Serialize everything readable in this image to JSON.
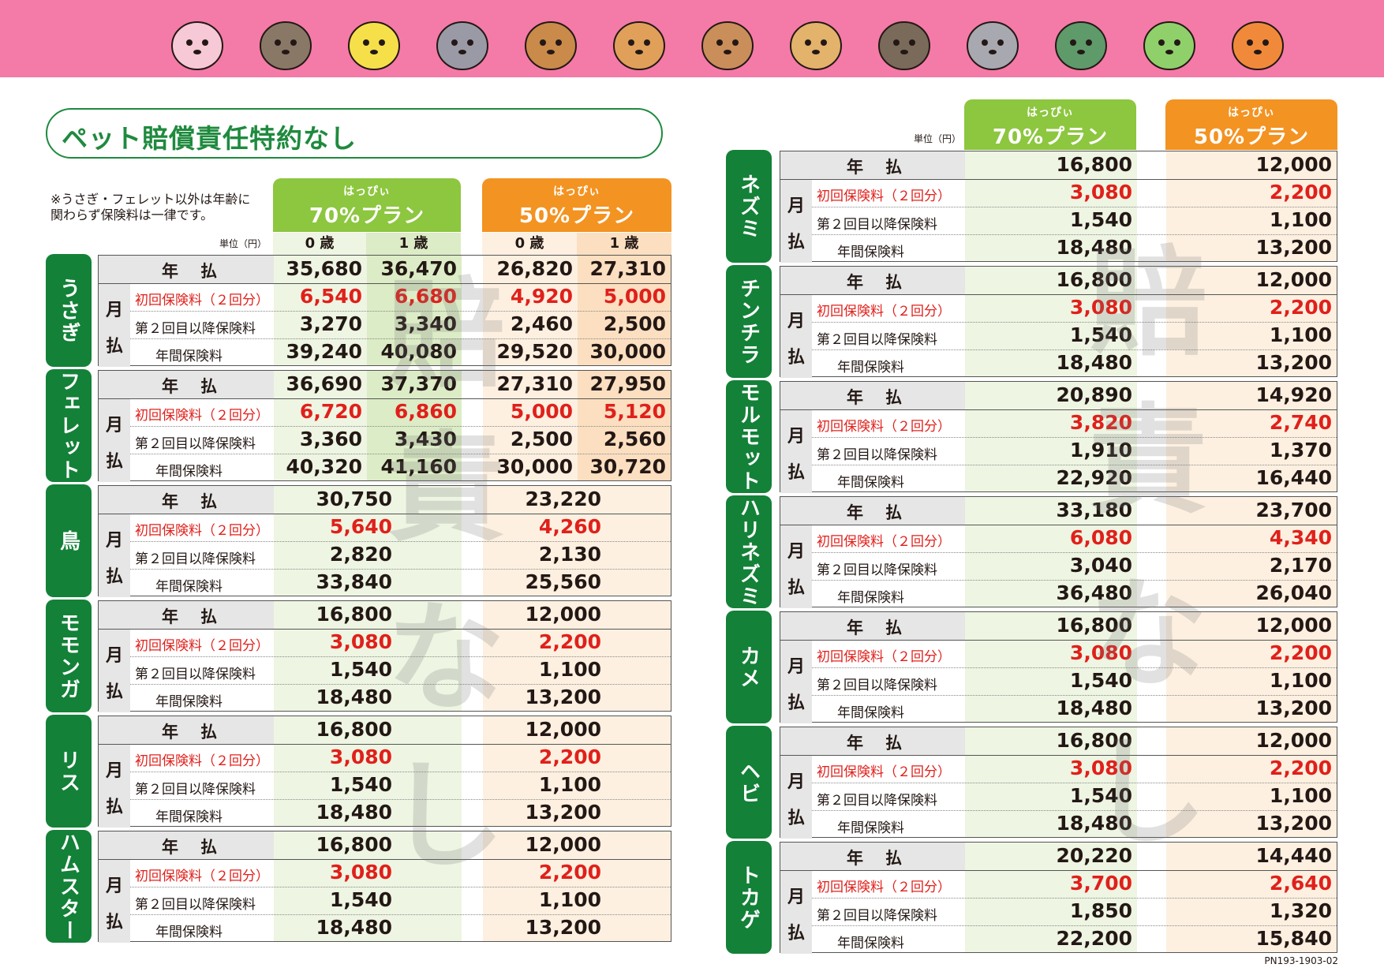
{
  "title": "ペット賠償責任特約なし",
  "note": "※うさぎ・フェレット以外は年齢に\n関わらず保険料は一律です。",
  "unit_label": "単位（円）",
  "watermark": [
    "賠",
    "責",
    "な",
    "し"
  ],
  "plans": {
    "ruby": "はっぴぃ",
    "p70": "70%プラン",
    "p50": "50%プラン"
  },
  "age_labels": [
    "0 歳",
    "1 歳"
  ],
  "row_labels": {
    "year": "年払",
    "month": [
      "月",
      "払"
    ],
    "first": "初回保険料（２回分）",
    "second": "第２回目以降保険料",
    "annual": "年間保険料"
  },
  "doc_code": "PN193-1903-02",
  "animals": [
    "rabbit-icon",
    "ferret-icon",
    "bird-icon",
    "sugar-glider-icon",
    "squirrel-icon",
    "hamster-icon",
    "guinea-pig-icon",
    "mouse-icon",
    "hedgehog-icon",
    "chinchilla-icon",
    "turtle-icon",
    "chameleon-icon",
    "snake-icon"
  ],
  "left": [
    {
      "name": "うさぎ",
      "aged": true,
      "year": [
        "35,680",
        "36,470",
        "26,820",
        "27,310"
      ],
      "first": [
        "6,540",
        "6,680",
        "4,920",
        "5,000"
      ],
      "second": [
        "3,270",
        "3,340",
        "2,460",
        "2,500"
      ],
      "annual": [
        "39,240",
        "40,080",
        "29,520",
        "30,000"
      ]
    },
    {
      "name": "フェレット",
      "aged": true,
      "year": [
        "36,690",
        "37,370",
        "27,310",
        "27,950"
      ],
      "first": [
        "6,720",
        "6,860",
        "5,000",
        "5,120"
      ],
      "second": [
        "3,360",
        "3,430",
        "2,500",
        "2,560"
      ],
      "annual": [
        "40,320",
        "41,160",
        "30,000",
        "30,720"
      ]
    },
    {
      "name": "鳥",
      "aged": false,
      "year": [
        "30,750",
        "23,220"
      ],
      "first": [
        "5,640",
        "4,260"
      ],
      "second": [
        "2,820",
        "2,130"
      ],
      "annual": [
        "33,840",
        "25,560"
      ]
    },
    {
      "name": "モモンガ",
      "aged": false,
      "year": [
        "16,800",
        "12,000"
      ],
      "first": [
        "3,080",
        "2,200"
      ],
      "second": [
        "1,540",
        "1,100"
      ],
      "annual": [
        "18,480",
        "13,200"
      ]
    },
    {
      "name": "リス",
      "aged": false,
      "year": [
        "16,800",
        "12,000"
      ],
      "first": [
        "3,080",
        "2,200"
      ],
      "second": [
        "1,540",
        "1,100"
      ],
      "annual": [
        "18,480",
        "13,200"
      ]
    },
    {
      "name": "ハムスター",
      "aged": false,
      "year": [
        "16,800",
        "12,000"
      ],
      "first": [
        "3,080",
        "2,200"
      ],
      "second": [
        "1,540",
        "1,100"
      ],
      "annual": [
        "18,480",
        "13,200"
      ]
    }
  ],
  "right": [
    {
      "name": "ネズミ",
      "year": [
        "16,800",
        "12,000"
      ],
      "first": [
        "3,080",
        "2,200"
      ],
      "second": [
        "1,540",
        "1,100"
      ],
      "annual": [
        "18,480",
        "13,200"
      ]
    },
    {
      "name": "チンチラ",
      "year": [
        "16,800",
        "12,000"
      ],
      "first": [
        "3,080",
        "2,200"
      ],
      "second": [
        "1,540",
        "1,100"
      ],
      "annual": [
        "18,480",
        "13,200"
      ]
    },
    {
      "name": "モルモット",
      "year": [
        "20,890",
        "14,920"
      ],
      "first": [
        "3,820",
        "2,740"
      ],
      "second": [
        "1,910",
        "1,370"
      ],
      "annual": [
        "22,920",
        "16,440"
      ]
    },
    {
      "name": "ハリネズミ",
      "year": [
        "33,180",
        "23,700"
      ],
      "first": [
        "6,080",
        "4,340"
      ],
      "second": [
        "3,040",
        "2,170"
      ],
      "annual": [
        "36,480",
        "26,040"
      ]
    },
    {
      "name": "カメ",
      "year": [
        "16,800",
        "12,000"
      ],
      "first": [
        "3,080",
        "2,200"
      ],
      "second": [
        "1,540",
        "1,100"
      ],
      "annual": [
        "18,480",
        "13,200"
      ]
    },
    {
      "name": "ヘビ",
      "year": [
        "16,800",
        "12,000"
      ],
      "first": [
        "3,080",
        "2,200"
      ],
      "second": [
        "1,540",
        "1,100"
      ],
      "annual": [
        "18,480",
        "13,200"
      ]
    },
    {
      "name": "トカゲ",
      "year": [
        "20,220",
        "14,440"
      ],
      "first": [
        "3,700",
        "2,640"
      ],
      "second": [
        "1,850",
        "1,320"
      ],
      "annual": [
        "22,200",
        "15,840"
      ]
    }
  ]
}
